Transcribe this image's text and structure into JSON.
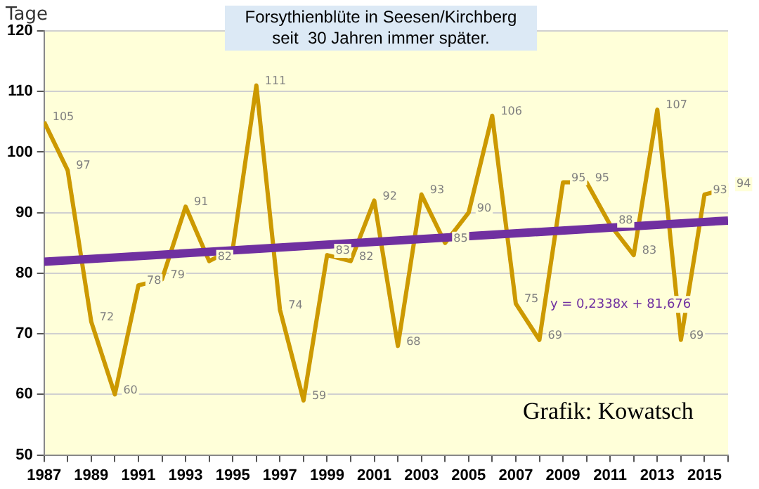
{
  "chart_data": {
    "type": "line",
    "title": "Forsythienblüte in Seesen/Kirchberg",
    "subtitle": "seit  30 Jahren immer später.",
    "ylabel": "Tage",
    "x": [
      1987,
      1988,
      1989,
      1990,
      1991,
      1992,
      1993,
      1994,
      1995,
      1996,
      1997,
      1998,
      1999,
      2000,
      2001,
      2002,
      2003,
      2004,
      2005,
      2006,
      2007,
      2008,
      2009,
      2010,
      2011,
      2012,
      2013,
      2014,
      2015,
      2016
    ],
    "series": [
      {
        "color": "#cc9900",
        "values": [
          105,
          97,
          72,
          60,
          78,
          79,
          91,
          82,
          84,
          111,
          74,
          59,
          83,
          82,
          92,
          68,
          93,
          85,
          90,
          106,
          75,
          69,
          95,
          95,
          88,
          83,
          107,
          69,
          93,
          94
        ],
        "value_labels": [
          "105",
          "97",
          "72",
          "60",
          "78",
          "79",
          "91",
          "82",
          null,
          "111",
          "74",
          "59",
          "83",
          "82",
          "92",
          "68",
          "93",
          "85",
          "90",
          "106",
          "75",
          "69",
          "95",
          "95",
          "88",
          "83",
          "107",
          "69",
          "93",
          "94"
        ]
      },
      {
        "type": "line",
        "color": "#7030a0",
        "x": [
          1987,
          2016
        ],
        "values": [
          81.9,
          88.7
        ]
      }
    ],
    "xlim": [
      1987,
      2016
    ],
    "xticks": [
      1987,
      {
        "value": 1988,
        "label": null
      },
      1989,
      {
        "value": 1990,
        "label": null
      },
      1991,
      {
        "value": 1992,
        "label": null
      },
      1993,
      {
        "value": 1994,
        "label": null
      },
      1995,
      {
        "value": 1996,
        "label": null
      },
      1997,
      {
        "value": 1998,
        "label": null
      },
      1999,
      {
        "value": 2000,
        "label": null
      },
      2001,
      {
        "value": 2002,
        "label": null
      },
      2003,
      {
        "value": 2004,
        "label": null
      },
      2005,
      {
        "value": 2006,
        "label": null
      },
      2007,
      {
        "value": 2008,
        "label": null
      },
      2009,
      {
        "value": 2010,
        "label": null
      },
      2011,
      {
        "value": 2012,
        "label": null
      },
      2013,
      {
        "value": 2014,
        "label": null
      },
      2015,
      {
        "value": 2016,
        "label": null
      }
    ],
    "ylim": [
      50,
      120
    ],
    "yticks": [
      50,
      60,
      70,
      80,
      90,
      100,
      110,
      120
    ],
    "grid": "y",
    "legend": false,
    "marker": "none",
    "line_style": "solid",
    "annotations": [
      "y = 0,2338x + 81,676",
      "Grafik: Kowatsch"
    ]
  }
}
